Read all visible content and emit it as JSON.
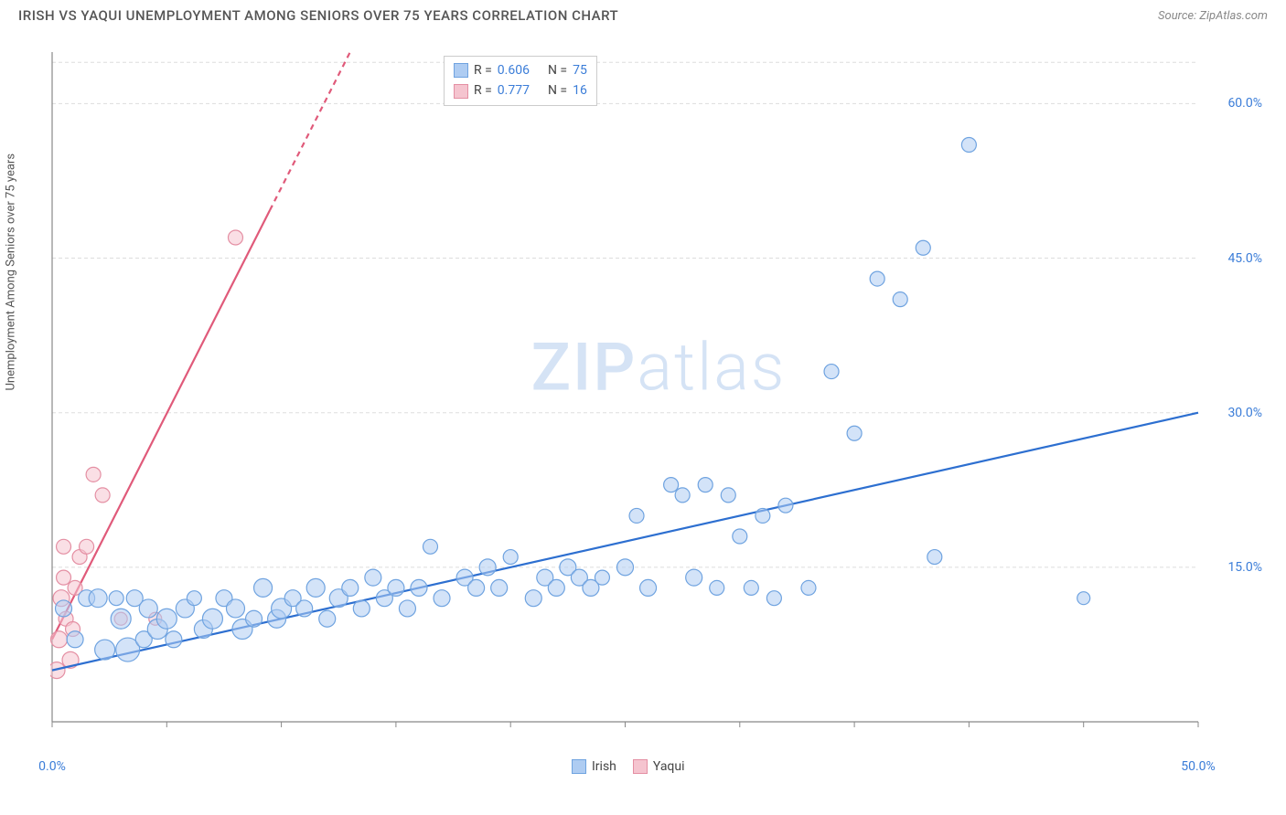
{
  "header": {
    "title": "IRISH VS YAQUI UNEMPLOYMENT AMONG SENIORS OVER 75 YEARS CORRELATION CHART",
    "source": "Source: ZipAtlas.com"
  },
  "ylabel": "Unemployment Among Seniors over 75 years",
  "watermark": {
    "zip": "ZIP",
    "atlas": "atlas"
  },
  "chart": {
    "type": "scatter",
    "background_color": "#ffffff",
    "grid_color": "#dddddd",
    "axis_color": "#888888",
    "xlim": [
      0,
      50
    ],
    "ylim": [
      0,
      65
    ],
    "x_ticks": [
      0,
      5,
      10,
      15,
      20,
      25,
      30,
      35,
      40,
      45,
      50
    ],
    "x_tick_labels": {
      "0": "0.0%",
      "50": "50.0%"
    },
    "y_gridlines": [
      15,
      30,
      45,
      60
    ],
    "y_tick_labels": [
      "15.0%",
      "30.0%",
      "45.0%",
      "60.0%"
    ],
    "top_gridline": 64,
    "series": {
      "irish": {
        "label": "Irish",
        "color_fill": "#aeccf2",
        "color_stroke": "#6fa3e0",
        "fill_opacity": 0.55,
        "r_value": "0.606",
        "n_value": "75",
        "marker_r_min": 6,
        "marker_r_max": 13,
        "trend": {
          "x1": 0,
          "y1": 5,
          "x2": 50,
          "y2": 30,
          "color": "#2d6fd0",
          "width": 2.2,
          "dash_from_x": null
        },
        "points": [
          {
            "x": 0.5,
            "y": 11,
            "r": 9
          },
          {
            "x": 1,
            "y": 8,
            "r": 9
          },
          {
            "x": 1.5,
            "y": 12,
            "r": 9
          },
          {
            "x": 2,
            "y": 12,
            "r": 10
          },
          {
            "x": 2.3,
            "y": 7,
            "r": 11
          },
          {
            "x": 2.8,
            "y": 12,
            "r": 8
          },
          {
            "x": 3,
            "y": 10,
            "r": 11
          },
          {
            "x": 3.3,
            "y": 7,
            "r": 13
          },
          {
            "x": 3.6,
            "y": 12,
            "r": 9
          },
          {
            "x": 4,
            "y": 8,
            "r": 9
          },
          {
            "x": 4.2,
            "y": 11,
            "r": 10
          },
          {
            "x": 4.6,
            "y": 9,
            "r": 11
          },
          {
            "x": 5,
            "y": 10,
            "r": 11
          },
          {
            "x": 5.3,
            "y": 8,
            "r": 9
          },
          {
            "x": 5.8,
            "y": 11,
            "r": 10
          },
          {
            "x": 6.2,
            "y": 12,
            "r": 8
          },
          {
            "x": 6.6,
            "y": 9,
            "r": 10
          },
          {
            "x": 7,
            "y": 10,
            "r": 11
          },
          {
            "x": 7.5,
            "y": 12,
            "r": 9
          },
          {
            "x": 8,
            "y": 11,
            "r": 10
          },
          {
            "x": 8.3,
            "y": 9,
            "r": 11
          },
          {
            "x": 8.8,
            "y": 10,
            "r": 9
          },
          {
            "x": 9.2,
            "y": 13,
            "r": 10
          },
          {
            "x": 9.8,
            "y": 10,
            "r": 10
          },
          {
            "x": 10,
            "y": 11,
            "r": 11
          },
          {
            "x": 10.5,
            "y": 12,
            "r": 9
          },
          {
            "x": 11,
            "y": 11,
            "r": 9
          },
          {
            "x": 11.5,
            "y": 13,
            "r": 10
          },
          {
            "x": 12,
            "y": 10,
            "r": 9
          },
          {
            "x": 12.5,
            "y": 12,
            "r": 10
          },
          {
            "x": 13,
            "y": 13,
            "r": 9
          },
          {
            "x": 13.5,
            "y": 11,
            "r": 9
          },
          {
            "x": 14,
            "y": 14,
            "r": 9
          },
          {
            "x": 14.5,
            "y": 12,
            "r": 9
          },
          {
            "x": 15,
            "y": 13,
            "r": 9
          },
          {
            "x": 15.5,
            "y": 11,
            "r": 9
          },
          {
            "x": 16,
            "y": 13,
            "r": 9
          },
          {
            "x": 16.5,
            "y": 17,
            "r": 8
          },
          {
            "x": 17,
            "y": 12,
            "r": 9
          },
          {
            "x": 18,
            "y": 14,
            "r": 9
          },
          {
            "x": 18.5,
            "y": 13,
            "r": 9
          },
          {
            "x": 19,
            "y": 15,
            "r": 9
          },
          {
            "x": 19.5,
            "y": 13,
            "r": 9
          },
          {
            "x": 20,
            "y": 16,
            "r": 8
          },
          {
            "x": 21,
            "y": 12,
            "r": 9
          },
          {
            "x": 21.5,
            "y": 14,
            "r": 9
          },
          {
            "x": 22,
            "y": 13,
            "r": 9
          },
          {
            "x": 22.5,
            "y": 15,
            "r": 9
          },
          {
            "x": 23,
            "y": 14,
            "r": 9
          },
          {
            "x": 23.5,
            "y": 13,
            "r": 9
          },
          {
            "x": 24,
            "y": 14,
            "r": 8
          },
          {
            "x": 25,
            "y": 15,
            "r": 9
          },
          {
            "x": 25.5,
            "y": 20,
            "r": 8
          },
          {
            "x": 26,
            "y": 13,
            "r": 9
          },
          {
            "x": 27,
            "y": 23,
            "r": 8
          },
          {
            "x": 27.5,
            "y": 22,
            "r": 8
          },
          {
            "x": 28,
            "y": 14,
            "r": 9
          },
          {
            "x": 28.5,
            "y": 23,
            "r": 8
          },
          {
            "x": 29,
            "y": 13,
            "r": 8
          },
          {
            "x": 29.5,
            "y": 22,
            "r": 8
          },
          {
            "x": 30,
            "y": 18,
            "r": 8
          },
          {
            "x": 30.5,
            "y": 13,
            "r": 8
          },
          {
            "x": 31,
            "y": 20,
            "r": 8
          },
          {
            "x": 31.5,
            "y": 12,
            "r": 8
          },
          {
            "x": 32,
            "y": 21,
            "r": 8
          },
          {
            "x": 33,
            "y": 13,
            "r": 8
          },
          {
            "x": 34,
            "y": 34,
            "r": 8
          },
          {
            "x": 35,
            "y": 28,
            "r": 8
          },
          {
            "x": 36,
            "y": 43,
            "r": 8
          },
          {
            "x": 37,
            "y": 41,
            "r": 8
          },
          {
            "x": 38,
            "y": 46,
            "r": 8
          },
          {
            "x": 38.5,
            "y": 16,
            "r": 8
          },
          {
            "x": 40,
            "y": 56,
            "r": 8
          },
          {
            "x": 45,
            "y": 12,
            "r": 7
          }
        ]
      },
      "yaqui": {
        "label": "Yaqui",
        "color_fill": "#f5c4cf",
        "color_stroke": "#e48fa3",
        "fill_opacity": 0.55,
        "r_value": "0.777",
        "n_value": "16",
        "marker_r_min": 6,
        "marker_r_max": 10,
        "trend": {
          "x1": 0,
          "y1": 8,
          "x2": 13,
          "y2": 65,
          "color": "#e05a7a",
          "width": 2.2,
          "dash_from_x": 9.5
        },
        "points": [
          {
            "x": 0.2,
            "y": 5,
            "r": 9
          },
          {
            "x": 0.3,
            "y": 8,
            "r": 9
          },
          {
            "x": 0.4,
            "y": 12,
            "r": 9
          },
          {
            "x": 0.5,
            "y": 14,
            "r": 8
          },
          {
            "x": 0.5,
            "y": 17,
            "r": 8
          },
          {
            "x": 0.6,
            "y": 10,
            "r": 8
          },
          {
            "x": 0.8,
            "y": 6,
            "r": 9
          },
          {
            "x": 0.9,
            "y": 9,
            "r": 8
          },
          {
            "x": 1,
            "y": 13,
            "r": 8
          },
          {
            "x": 1.2,
            "y": 16,
            "r": 8
          },
          {
            "x": 1.5,
            "y": 17,
            "r": 8
          },
          {
            "x": 1.8,
            "y": 24,
            "r": 8
          },
          {
            "x": 2.2,
            "y": 22,
            "r": 8
          },
          {
            "x": 3,
            "y": 10,
            "r": 7
          },
          {
            "x": 4.5,
            "y": 10,
            "r": 7
          },
          {
            "x": 8,
            "y": 47,
            "r": 8
          }
        ]
      }
    },
    "legend_top": {
      "r_label": "R =",
      "n_label": "N ="
    },
    "legend_bottom": [
      {
        "label": "Irish",
        "color": "#aeccf2",
        "stroke": "#6fa3e0"
      },
      {
        "label": "Yaqui",
        "color": "#f5c4cf",
        "stroke": "#e48fa3"
      }
    ]
  }
}
